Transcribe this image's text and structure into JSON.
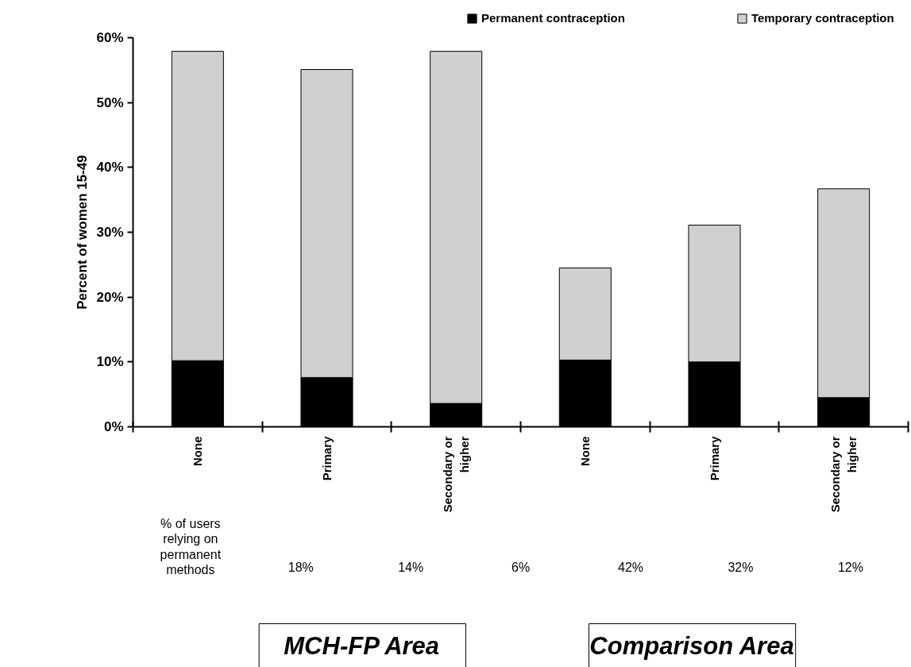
{
  "chart_data": {
    "type": "bar",
    "stacked": true,
    "ylabel": "Percent of women 15-49",
    "categories": [
      "None",
      "Primary",
      "Secondary or higher",
      "None",
      "Primary",
      "Secondary or higher"
    ],
    "series": [
      {
        "name": "Permanent contraception",
        "color": "#000000",
        "values": [
          10.2,
          7.6,
          3.6,
          10.3,
          10.0,
          4.5
        ]
      },
      {
        "name": "Temporary contraception",
        "color": "#d0d0d0",
        "values": [
          47.7,
          47.5,
          54.3,
          14.2,
          21.1,
          32.2
        ]
      }
    ],
    "ylim": [
      0,
      60
    ],
    "yticks": [
      {
        "value": 0,
        "label": "0%"
      },
      {
        "value": 10,
        "label": "10%"
      },
      {
        "value": 20,
        "label": "20%"
      },
      {
        "value": 30,
        "label": "30%"
      },
      {
        "value": 40,
        "label": "40%"
      },
      {
        "value": 50,
        "label": "50%"
      },
      {
        "value": 60,
        "label": "60%"
      }
    ],
    "grid": false,
    "legend": "top",
    "annotations": [
      "% of users relying on permanent methods",
      "18%",
      "14%",
      "6%",
      "42%",
      "32%",
      "12%",
      "MCH-FP Area",
      "Comparison Area"
    ]
  }
}
